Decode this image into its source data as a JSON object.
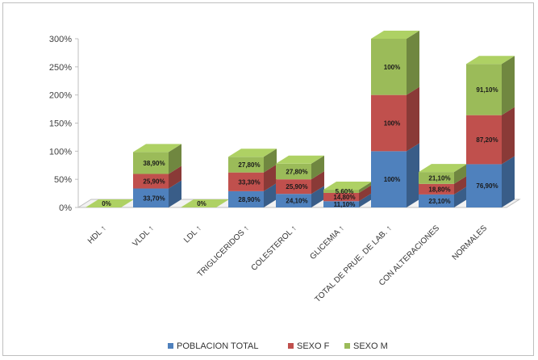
{
  "chart_data": {
    "type": "bar",
    "stacked": true,
    "style": "3d",
    "categories": [
      "HDL ↑",
      "VLDL ↑",
      "LDL ↑",
      "TRIGLICERIDOS ↑",
      "COLESTEROL ↑",
      "GLICEMIA ↑",
      "TOTAL DE PRUE. DE LAB. ↑",
      "CON ALTERACIONES",
      "NORMALES"
    ],
    "series": [
      {
        "name": "POBLACION TOTAL",
        "color": "#4f81bd",
        "values": [
          0,
          33.7,
          0,
          28.9,
          24.1,
          11.1,
          100,
          23.1,
          76.9
        ],
        "labels": [
          "",
          "33,70%",
          "",
          "28,90%",
          "24,10%",
          "11,10%",
          "100%",
          "23,10%",
          "76,90%"
        ]
      },
      {
        "name": "SEXO F",
        "color": "#c0504d",
        "values": [
          0,
          25.9,
          0,
          33.3,
          25.9,
          14.8,
          100,
          18.8,
          87.2
        ],
        "labels": [
          "0%",
          "25,90%",
          "0%",
          "33,30%",
          "25,90%",
          "14,80%",
          "100%",
          "18,80%",
          "87,20%"
        ]
      },
      {
        "name": "SEXO M",
        "color": "#9bbb59",
        "values": [
          0,
          38.9,
          0,
          27.8,
          27.8,
          5.6,
          100,
          21.1,
          91.1
        ],
        "labels": [
          "",
          "38,90%",
          "",
          "27,80%",
          "27,80%",
          "5,60%",
          "100%",
          "21,10%",
          "91,10%"
        ]
      }
    ],
    "ylim": [
      0,
      300
    ],
    "yticks": [
      "0%",
      "50%",
      "100%",
      "150%",
      "200%",
      "250%",
      "300%"
    ],
    "grid": false,
    "legend": "bottom"
  }
}
